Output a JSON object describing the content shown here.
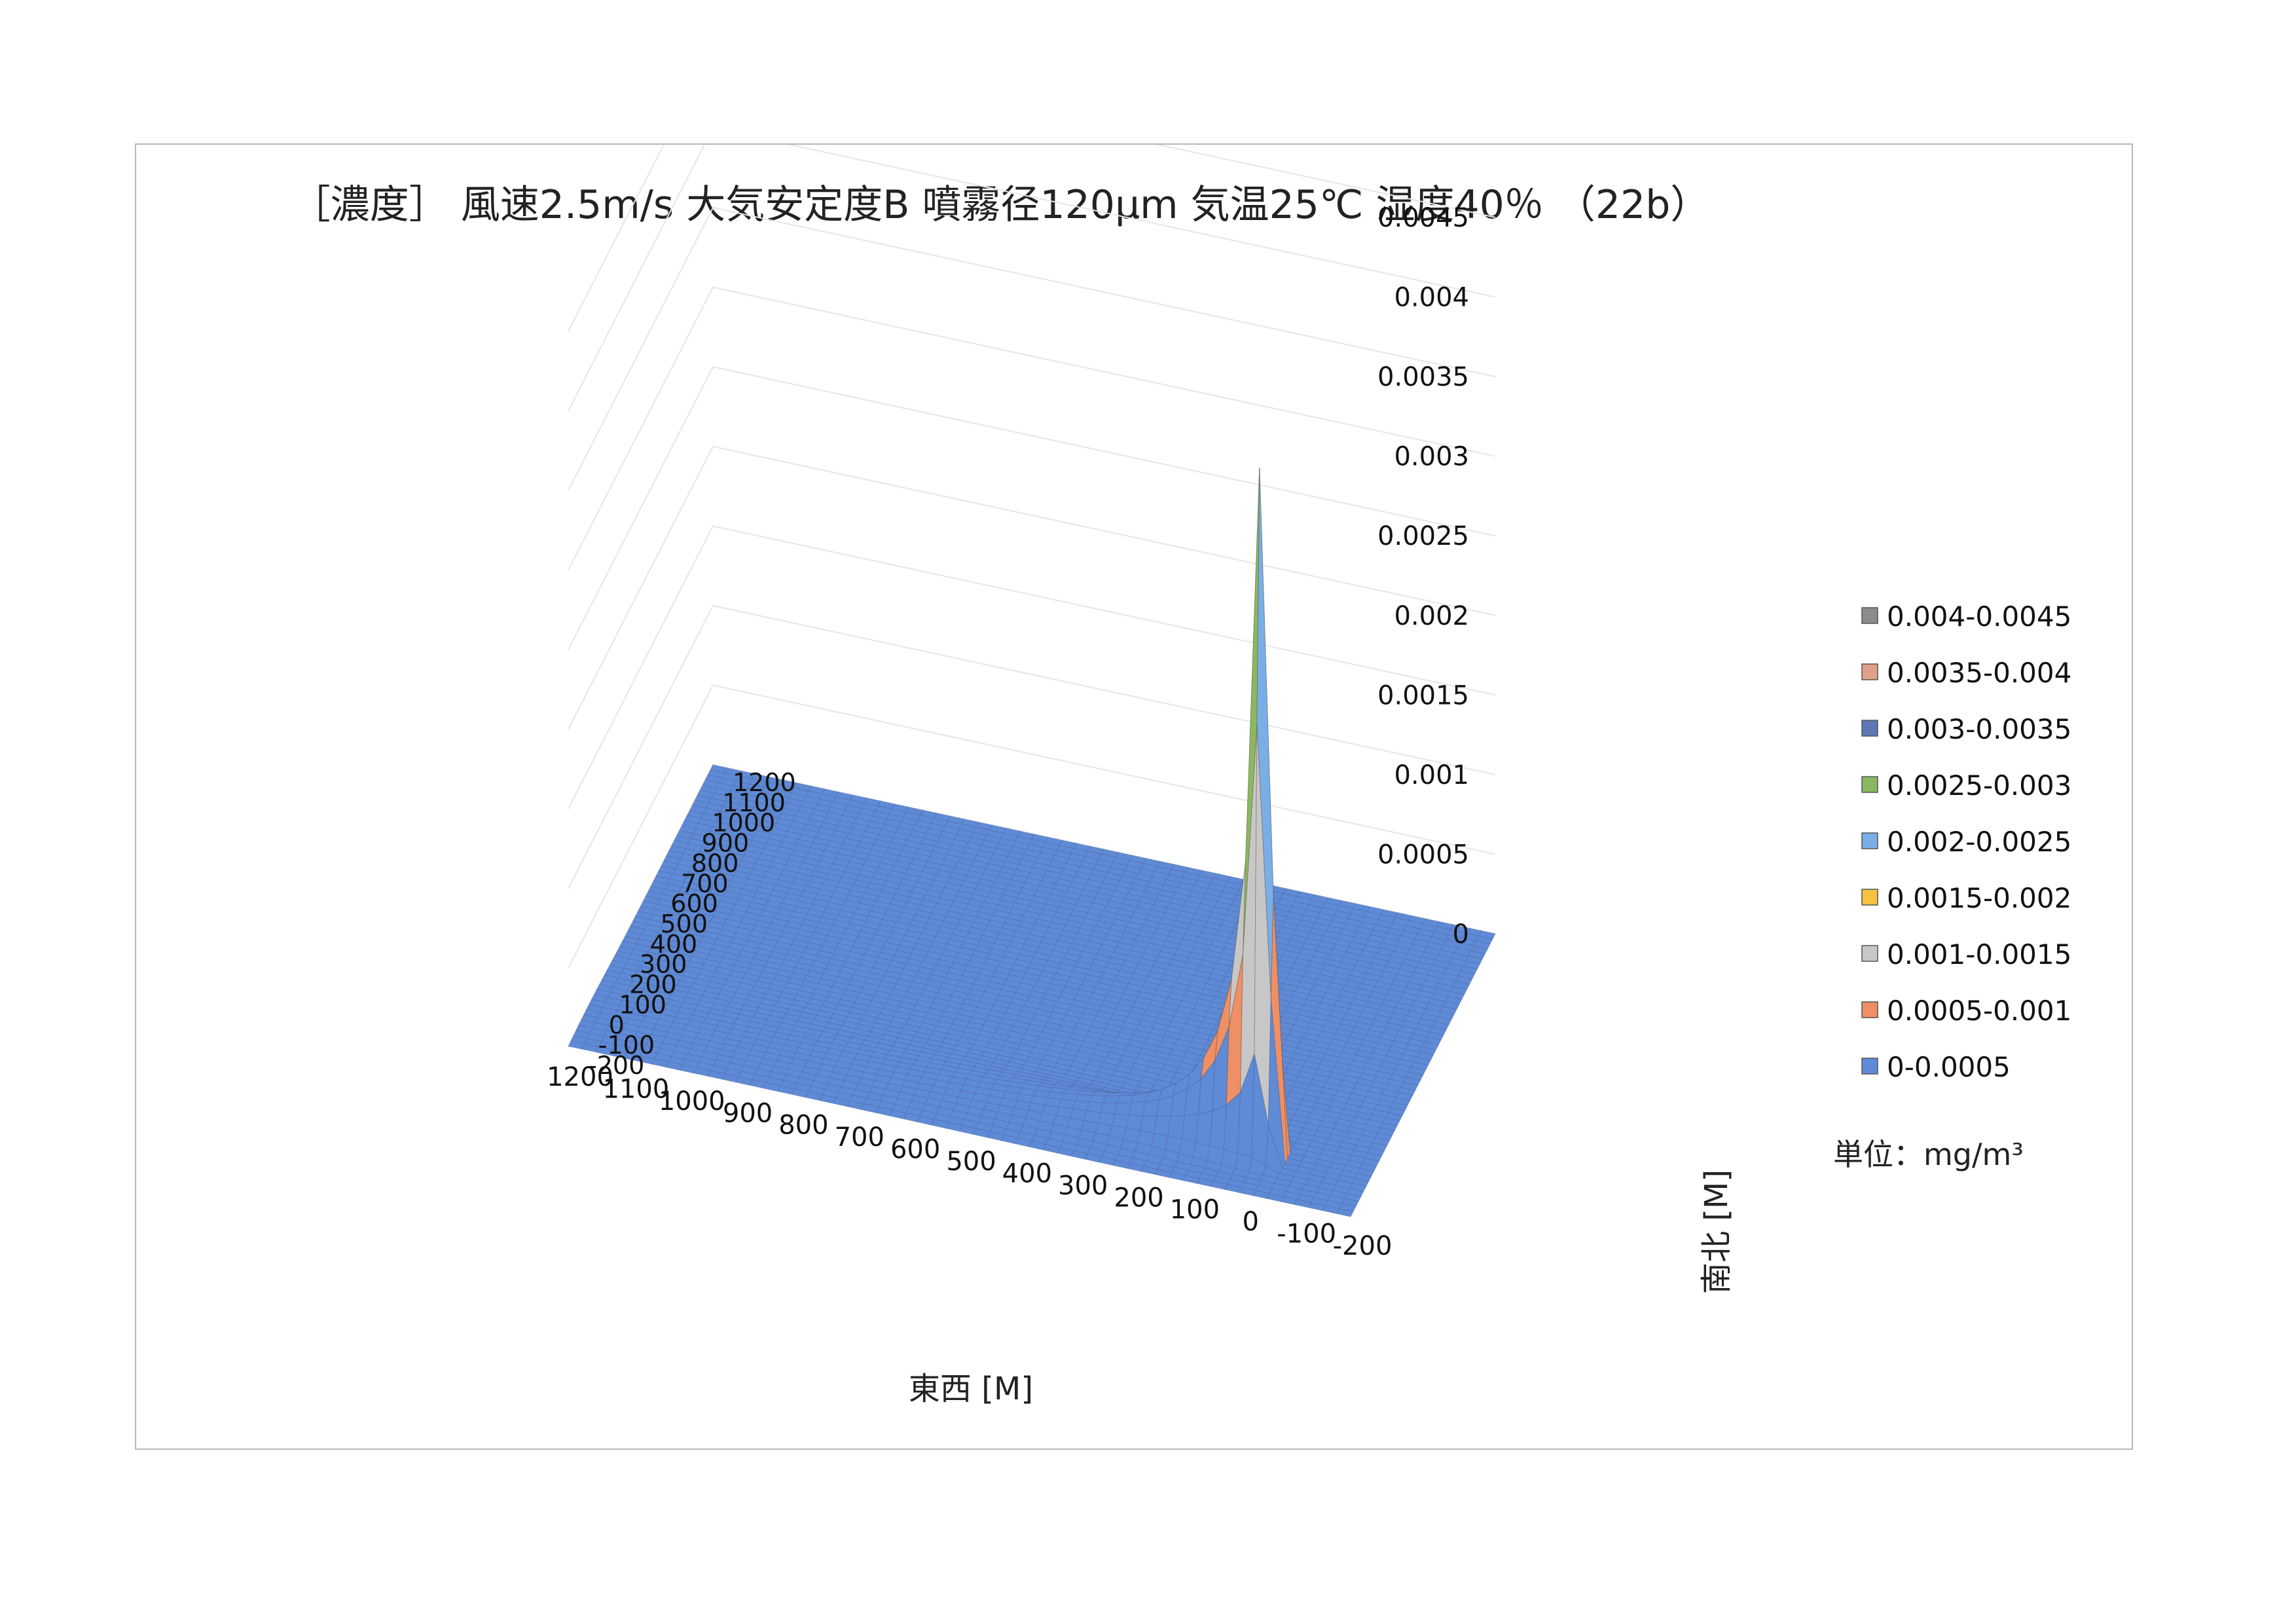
{
  "chart_data": {
    "type": "surface",
    "title": "［濃度］ 風速2.5m/s 大気安定度B 噴霧径120µm 気温25℃ 湿度40％ （22b）",
    "xlabel": "東西 [M]",
    "ylabel": "南北 [M]",
    "unit_label": "単位：mg/m³",
    "x_ticks": [
      "-200",
      "-100",
      "0",
      "100",
      "200",
      "300",
      "400",
      "500",
      "600",
      "700",
      "800",
      "900",
      "1000",
      "1100",
      "1200"
    ],
    "y_ticks": [
      "-200",
      "-100",
      "0",
      "100",
      "200",
      "300",
      "400",
      "500",
      "600",
      "700",
      "800",
      "900",
      "1000",
      "1100",
      "1200"
    ],
    "z_ticks": [
      "0",
      "0.0005",
      "0.001",
      "0.0015",
      "0.002",
      "0.0025",
      "0.003",
      "0.0035",
      "0.004",
      "0.0045"
    ],
    "xlim": [
      -200,
      1200
    ],
    "ylim": [
      -200,
      1200
    ],
    "zlim": [
      0,
      0.0045
    ],
    "source_x": 0,
    "source_y": 0,
    "peak_concentration": 0.0043,
    "plume_direction": "east",
    "legend": [
      {
        "range": "0.004-0.0045",
        "color": "#8c8c8c"
      },
      {
        "range": "0.0035-0.004",
        "color": "#e0a08a"
      },
      {
        "range": "0.003-0.0035",
        "color": "#5d77b5"
      },
      {
        "range": "0.0025-0.003",
        "color": "#8ab861"
      },
      {
        "range": "0.002-0.0025",
        "color": "#79aee6"
      },
      {
        "range": "0.0015-0.002",
        "color": "#f5c242"
      },
      {
        "range": "0.001-0.0015",
        "color": "#c7c7c7"
      },
      {
        "range": "0.0005-0.001",
        "color": "#ee8f66"
      },
      {
        "range": "0-0.0005",
        "color": "#5f8ad6"
      }
    ],
    "legend_position": "right",
    "gridlines": true
  }
}
